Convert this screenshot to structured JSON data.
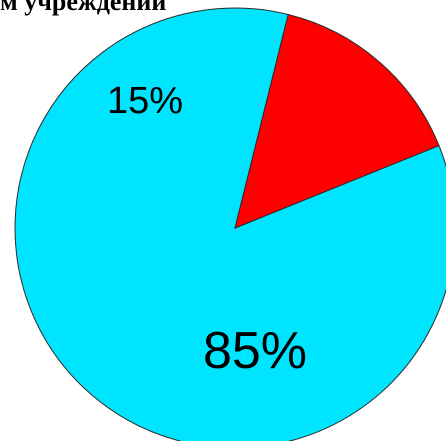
{
  "chart_data": {
    "type": "pie",
    "title": "м учреждении",
    "slices": [
      {
        "label": "85%",
        "value": 85,
        "color": "#00e5ff"
      },
      {
        "label": "15%",
        "value": 15,
        "color": "#ff0000"
      }
    ]
  }
}
